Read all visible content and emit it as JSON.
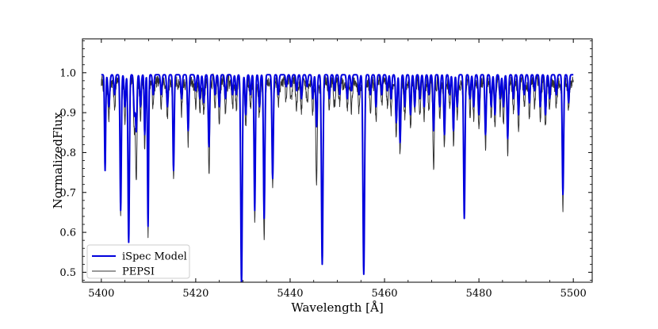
{
  "chart_data": {
    "type": "line",
    "title": "",
    "xlabel": "Wavelength [Å]",
    "ylabel": "NormalizedFlux",
    "xlim": [
      5396,
      5504
    ],
    "ylim": [
      0.475,
      1.085
    ],
    "x_ticks": [
      5400,
      5420,
      5440,
      5460,
      5480,
      5500
    ],
    "y_ticks": [
      0.5,
      0.6,
      0.7,
      0.8,
      0.9,
      1.0
    ],
    "x_tick_labels": [
      "5400",
      "5420",
      "5440",
      "5460",
      "5480",
      "5500"
    ],
    "y_tick_labels": [
      "0.5",
      "0.6",
      "0.7",
      "0.8",
      "0.9",
      "1.0"
    ],
    "x_range": [
      5400,
      5500
    ],
    "grid": false,
    "legend": "lower-left",
    "series": [
      {
        "name": "iSpec Model",
        "color": "#0000dd",
        "linewidth": 2,
        "continuum": 0.995,
        "lines": [
          [
            5400.8,
            0.24,
            0.12
          ],
          [
            5401.6,
            0.08,
            0.18
          ],
          [
            5402.8,
            0.05,
            0.15
          ],
          [
            5404.1,
            0.34,
            0.14
          ],
          [
            5405.0,
            0.08,
            0.15
          ],
          [
            5405.8,
            0.42,
            0.15
          ],
          [
            5407.0,
            0.1,
            0.15
          ],
          [
            5407.4,
            0.14,
            0.15
          ],
          [
            5408.3,
            0.08,
            0.15
          ],
          [
            5409.2,
            0.15,
            0.12
          ],
          [
            5409.9,
            0.38,
            0.12
          ],
          [
            5411.0,
            0.05,
            0.15
          ],
          [
            5412.7,
            0.05,
            0.15
          ],
          [
            5414.0,
            0.08,
            0.15
          ],
          [
            5415.3,
            0.24,
            0.14
          ],
          [
            5417.0,
            0.06,
            0.15
          ],
          [
            5418.4,
            0.14,
            0.15
          ],
          [
            5420.0,
            0.04,
            0.15
          ],
          [
            5420.9,
            0.06,
            0.15
          ],
          [
            5421.7,
            0.07,
            0.15
          ],
          [
            5422.8,
            0.18,
            0.15
          ],
          [
            5424.1,
            0.05,
            0.15
          ],
          [
            5425.0,
            0.08,
            0.15
          ],
          [
            5426.3,
            0.06,
            0.15
          ],
          [
            5427.8,
            0.05,
            0.15
          ],
          [
            5428.6,
            0.05,
            0.15
          ],
          [
            5429.7,
            0.525,
            0.16
          ],
          [
            5430.6,
            0.1,
            0.15
          ],
          [
            5431.6,
            0.05,
            0.15
          ],
          [
            5432.5,
            0.34,
            0.14
          ],
          [
            5433.5,
            0.08,
            0.15
          ],
          [
            5434.5,
            0.36,
            0.15
          ],
          [
            5436.3,
            0.26,
            0.15
          ],
          [
            5437.5,
            0.05,
            0.15
          ],
          [
            5439.2,
            0.03,
            0.15
          ],
          [
            5440.2,
            0.03,
            0.15
          ],
          [
            5441.4,
            0.04,
            0.15
          ],
          [
            5442.4,
            0.06,
            0.15
          ],
          [
            5443.6,
            0.03,
            0.15
          ],
          [
            5444.8,
            0.06,
            0.15
          ],
          [
            5445.6,
            0.13,
            0.15
          ],
          [
            5446.8,
            0.475,
            0.16
          ],
          [
            5448.3,
            0.06,
            0.15
          ],
          [
            5449.4,
            0.04,
            0.15
          ],
          [
            5450.5,
            0.05,
            0.15
          ],
          [
            5452.1,
            0.06,
            0.15
          ],
          [
            5453.0,
            0.04,
            0.15
          ],
          [
            5454.6,
            0.05,
            0.15
          ],
          [
            5455.6,
            0.5,
            0.17
          ],
          [
            5457.0,
            0.05,
            0.15
          ],
          [
            5458.2,
            0.08,
            0.15
          ],
          [
            5459.4,
            0.05,
            0.15
          ],
          [
            5460.6,
            0.04,
            0.15
          ],
          [
            5461.4,
            0.06,
            0.15
          ],
          [
            5462.5,
            0.12,
            0.15
          ],
          [
            5463.3,
            0.17,
            0.15
          ],
          [
            5464.3,
            0.08,
            0.15
          ],
          [
            5465.5,
            0.1,
            0.15
          ],
          [
            5466.4,
            0.08,
            0.15
          ],
          [
            5467.5,
            0.06,
            0.15
          ],
          [
            5468.4,
            0.08,
            0.15
          ],
          [
            5469.4,
            0.05,
            0.15
          ],
          [
            5470.4,
            0.14,
            0.15
          ],
          [
            5471.7,
            0.08,
            0.15
          ],
          [
            5472.7,
            0.15,
            0.15
          ],
          [
            5473.8,
            0.05,
            0.15
          ],
          [
            5474.6,
            0.14,
            0.15
          ],
          [
            5475.4,
            0.08,
            0.15
          ],
          [
            5476.9,
            0.36,
            0.15
          ],
          [
            5478.1,
            0.06,
            0.15
          ],
          [
            5478.9,
            0.08,
            0.15
          ],
          [
            5480.0,
            0.1,
            0.15
          ],
          [
            5481.4,
            0.15,
            0.15
          ],
          [
            5482.6,
            0.08,
            0.15
          ],
          [
            5483.4,
            0.1,
            0.15
          ],
          [
            5484.5,
            0.06,
            0.15
          ],
          [
            5485.2,
            0.08,
            0.15
          ],
          [
            5486.1,
            0.16,
            0.15
          ],
          [
            5487.3,
            0.06,
            0.15
          ],
          [
            5488.4,
            0.1,
            0.15
          ],
          [
            5489.6,
            0.05,
            0.15
          ],
          [
            5490.7,
            0.07,
            0.15
          ],
          [
            5491.8,
            0.04,
            0.15
          ],
          [
            5493.0,
            0.08,
            0.15
          ],
          [
            5494.1,
            0.1,
            0.15
          ],
          [
            5495.0,
            0.06,
            0.15
          ],
          [
            5496.4,
            0.05,
            0.15
          ],
          [
            5497.8,
            0.3,
            0.15
          ],
          [
            5499.0,
            0.07,
            0.15
          ]
        ]
      },
      {
        "name": "PEPSI",
        "color": "#333333",
        "linewidth": 1,
        "continuum": 0.975,
        "noise": 0.028,
        "seed": 7,
        "lines": [
          [
            5400.8,
            0.22,
            0.13
          ],
          [
            5401.6,
            0.08,
            0.18
          ],
          [
            5402.8,
            0.06,
            0.15
          ],
          [
            5404.1,
            0.32,
            0.15
          ],
          [
            5405.0,
            0.09,
            0.15
          ],
          [
            5405.8,
            0.39,
            0.16
          ],
          [
            5407.0,
            0.11,
            0.15
          ],
          [
            5407.4,
            0.24,
            0.15
          ],
          [
            5408.3,
            0.09,
            0.15
          ],
          [
            5409.2,
            0.16,
            0.13
          ],
          [
            5409.9,
            0.37,
            0.13
          ],
          [
            5411.0,
            0.06,
            0.15
          ],
          [
            5412.7,
            0.06,
            0.15
          ],
          [
            5414.0,
            0.09,
            0.15
          ],
          [
            5415.3,
            0.23,
            0.15
          ],
          [
            5417.0,
            0.07,
            0.15
          ],
          [
            5418.4,
            0.15,
            0.15
          ],
          [
            5420.0,
            0.06,
            0.15
          ],
          [
            5420.9,
            0.07,
            0.15
          ],
          [
            5421.7,
            0.08,
            0.15
          ],
          [
            5422.8,
            0.23,
            0.15
          ],
          [
            5424.1,
            0.06,
            0.15
          ],
          [
            5425.0,
            0.09,
            0.15
          ],
          [
            5426.3,
            0.07,
            0.15
          ],
          [
            5427.8,
            0.06,
            0.15
          ],
          [
            5428.6,
            0.06,
            0.15
          ],
          [
            5429.7,
            0.505,
            0.17
          ],
          [
            5430.6,
            0.11,
            0.15
          ],
          [
            5431.6,
            0.06,
            0.15
          ],
          [
            5432.5,
            0.34,
            0.15
          ],
          [
            5433.5,
            0.09,
            0.15
          ],
          [
            5434.5,
            0.4,
            0.16
          ],
          [
            5436.3,
            0.25,
            0.16
          ],
          [
            5437.5,
            0.06,
            0.15
          ],
          [
            5439.2,
            0.05,
            0.15
          ],
          [
            5440.2,
            0.05,
            0.15
          ],
          [
            5441.4,
            0.06,
            0.15
          ],
          [
            5442.4,
            0.07,
            0.15
          ],
          [
            5443.6,
            0.05,
            0.15
          ],
          [
            5444.8,
            0.07,
            0.15
          ],
          [
            5445.6,
            0.24,
            0.15
          ],
          [
            5446.8,
            0.46,
            0.17
          ],
          [
            5448.3,
            0.07,
            0.15
          ],
          [
            5449.4,
            0.06,
            0.15
          ],
          [
            5450.5,
            0.06,
            0.15
          ],
          [
            5452.1,
            0.07,
            0.15
          ],
          [
            5453.0,
            0.06,
            0.15
          ],
          [
            5454.6,
            0.06,
            0.15
          ],
          [
            5455.6,
            0.48,
            0.18
          ],
          [
            5457.0,
            0.06,
            0.15
          ],
          [
            5458.2,
            0.09,
            0.15
          ],
          [
            5459.4,
            0.06,
            0.15
          ],
          [
            5460.6,
            0.06,
            0.15
          ],
          [
            5461.4,
            0.07,
            0.15
          ],
          [
            5462.5,
            0.13,
            0.15
          ],
          [
            5463.3,
            0.18,
            0.15
          ],
          [
            5464.3,
            0.09,
            0.15
          ],
          [
            5465.5,
            0.11,
            0.15
          ],
          [
            5466.4,
            0.09,
            0.15
          ],
          [
            5467.5,
            0.07,
            0.15
          ],
          [
            5468.4,
            0.09,
            0.15
          ],
          [
            5469.4,
            0.06,
            0.15
          ],
          [
            5470.4,
            0.22,
            0.15
          ],
          [
            5471.7,
            0.09,
            0.15
          ],
          [
            5472.7,
            0.16,
            0.15
          ],
          [
            5473.8,
            0.06,
            0.15
          ],
          [
            5474.6,
            0.15,
            0.15
          ],
          [
            5475.4,
            0.09,
            0.15
          ],
          [
            5476.9,
            0.34,
            0.16
          ],
          [
            5478.1,
            0.07,
            0.15
          ],
          [
            5478.9,
            0.09,
            0.15
          ],
          [
            5480.0,
            0.11,
            0.15
          ],
          [
            5481.4,
            0.16,
            0.15
          ],
          [
            5482.6,
            0.09,
            0.15
          ],
          [
            5483.4,
            0.11,
            0.15
          ],
          [
            5484.5,
            0.07,
            0.15
          ],
          [
            5485.2,
            0.09,
            0.15
          ],
          [
            5486.1,
            0.17,
            0.15
          ],
          [
            5487.3,
            0.07,
            0.15
          ],
          [
            5488.4,
            0.11,
            0.15
          ],
          [
            5489.6,
            0.06,
            0.15
          ],
          [
            5490.7,
            0.08,
            0.15
          ],
          [
            5491.8,
            0.06,
            0.15
          ],
          [
            5493.0,
            0.09,
            0.15
          ],
          [
            5494.1,
            0.11,
            0.15
          ],
          [
            5495.0,
            0.07,
            0.15
          ],
          [
            5496.4,
            0.06,
            0.15
          ],
          [
            5497.8,
            0.31,
            0.16
          ],
          [
            5499.0,
            0.08,
            0.15
          ]
        ]
      }
    ]
  }
}
